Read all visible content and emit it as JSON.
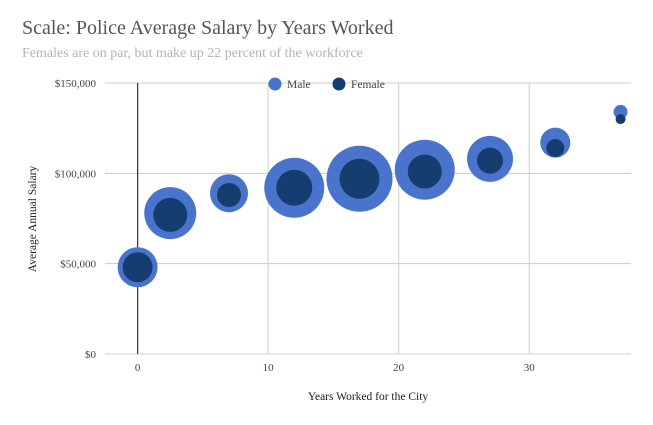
{
  "title": "Scale: Police Average Salary by Years Worked",
  "subtitle": "Females are on par, but make up 22 percent of the workforce",
  "colors": {
    "male": "#4a74cc",
    "female": "#163d70",
    "grid": "#cccccc",
    "axis": "#333333"
  },
  "chart_data": {
    "type": "scatter",
    "bubble": true,
    "title": "Scale: Police Average Salary by Years Worked",
    "subtitle": "Females are on par, but make up 22 percent of the workforce",
    "xlabel": "Years Worked for the City",
    "ylabel": "Average Annual Salary",
    "xlim": [
      -2.5,
      37.8
    ],
    "ylim": [
      0,
      150000
    ],
    "xticks": [
      0,
      10,
      20,
      30
    ],
    "xtick_labels": [
      "0",
      "10",
      "20",
      "30"
    ],
    "yticks": [
      0,
      50000,
      100000,
      150000
    ],
    "ytick_labels": [
      "$0",
      "$50,000",
      "$100,000",
      "$150,000"
    ],
    "grid": true,
    "legend": "top-center",
    "series": [
      {
        "name": "Male",
        "color": "#4a74cc",
        "points": [
          {
            "x": 0,
            "y": 48000,
            "size": 20
          },
          {
            "x": 2.5,
            "y": 78000,
            "size": 26
          },
          {
            "x": 7,
            "y": 89000,
            "size": 19
          },
          {
            "x": 12,
            "y": 92000,
            "size": 30
          },
          {
            "x": 17,
            "y": 97000,
            "size": 33
          },
          {
            "x": 22,
            "y": 102000,
            "size": 30
          },
          {
            "x": 27,
            "y": 108000,
            "size": 23
          },
          {
            "x": 32,
            "y": 117000,
            "size": 15
          },
          {
            "x": 37,
            "y": 134000,
            "size": 7
          }
        ]
      },
      {
        "name": "Female",
        "color": "#163d70",
        "points": [
          {
            "x": 0,
            "y": 48000,
            "size": 15
          },
          {
            "x": 2.5,
            "y": 77000,
            "size": 17
          },
          {
            "x": 7,
            "y": 88000,
            "size": 12
          },
          {
            "x": 12,
            "y": 92000,
            "size": 18
          },
          {
            "x": 17,
            "y": 97000,
            "size": 20
          },
          {
            "x": 22,
            "y": 101000,
            "size": 17
          },
          {
            "x": 27,
            "y": 107000,
            "size": 13
          },
          {
            "x": 32,
            "y": 114000,
            "size": 9
          },
          {
            "x": 37,
            "y": 130000,
            "size": 5
          }
        ]
      }
    ]
  }
}
